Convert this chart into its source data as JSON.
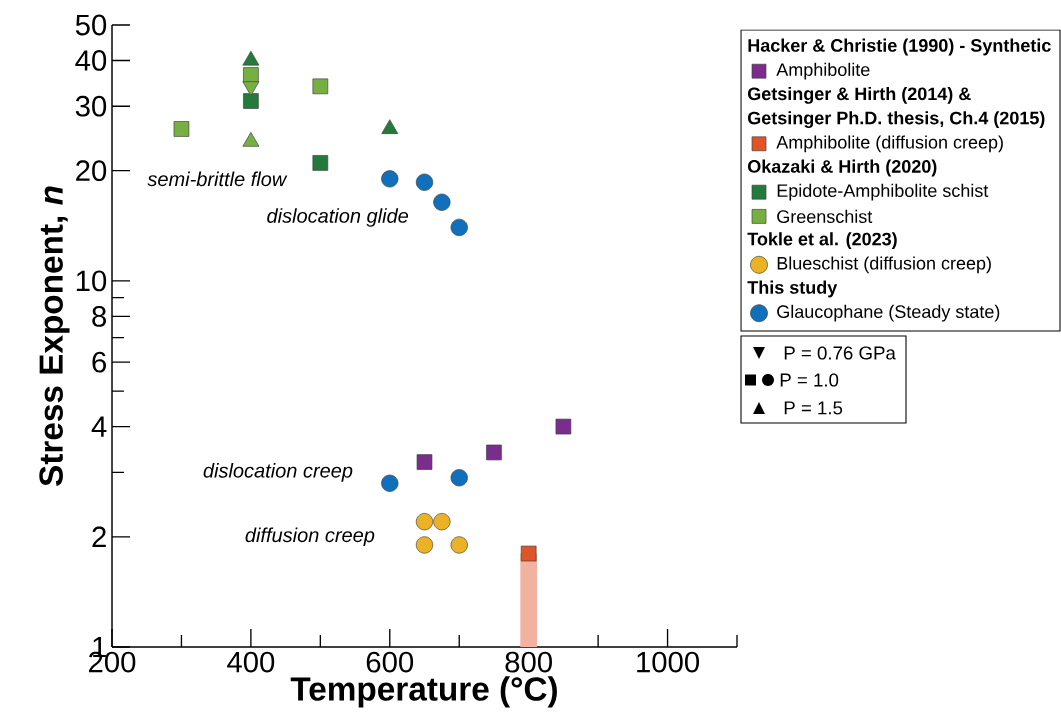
{
  "chart_data": {
    "type": "scatter",
    "xlabel": "Temperature (°C)",
    "ylabel": "Stress Exponent, *n*",
    "xlim": [
      200,
      1100
    ],
    "ylim": [
      1,
      50
    ],
    "log": "y",
    "grid": false,
    "legend": "right",
    "xticks": [
      200,
      {
        "value": 300,
        "label": null
      },
      400,
      {
        "value": 500,
        "label": null
      },
      600,
      {
        "value": 700,
        "label": null
      },
      800,
      {
        "value": 900,
        "label": null
      },
      1000,
      {
        "value": 1100,
        "label": null
      }
    ],
    "yticks": [
      1,
      2,
      {
        "value": 3,
        "label": null
      },
      4,
      {
        "value": 5,
        "label": null
      },
      6,
      {
        "value": 7,
        "label": null
      },
      8,
      {
        "value": 9,
        "label": null
      },
      10,
      20,
      30,
      40,
      50
    ],
    "series": [
      {
        "name": "Amphibolite",
        "color": "#7b2d8e",
        "marker": "square",
        "x": [
          650,
          750,
          850
        ],
        "values": [
          3.2,
          3.4,
          4.0
        ]
      },
      {
        "name": "Amphibolite (diffusion creep)",
        "color": "#e0542a",
        "marker": "square",
        "x": [
          800
        ],
        "values": [
          1.8
        ],
        "errors": [
          [
            1,
            1.8
          ]
        ]
      },
      {
        "name": "Epidote-Amphibolite schist",
        "color": "#237a3b",
        "marker": "square",
        "x": [
          400,
          500
        ],
        "values": [
          31,
          21
        ]
      },
      {
        "color": "#237a3b",
        "marker": "triangle",
        "x": [
          400,
          600
        ],
        "values": [
          40,
          26
        ]
      },
      {
        "name": "Greenschist",
        "color": "#76b043",
        "marker": "square",
        "x": [
          300,
          400,
          500
        ],
        "values": [
          26,
          36.5,
          34
        ]
      },
      {
        "color": "#76b043",
        "marker": "triangle_down",
        "x": [
          400
        ],
        "values": [
          34
        ]
      },
      {
        "color": "#76b043",
        "marker": "triangle",
        "x": [
          400
        ],
        "values": [
          24
        ]
      },
      {
        "name": "Blueschist (diffusion creep)",
        "color": "#ecb225",
        "marker": "circle",
        "x": [
          650,
          675,
          650,
          700
        ],
        "values": [
          2.2,
          2.2,
          1.9,
          1.9
        ]
      },
      {
        "name": "Glaucophane (Steady state)",
        "color": "#1070bb",
        "marker": "circle",
        "x": [
          600,
          650,
          675,
          700,
          600,
          700
        ],
        "values": [
          19,
          18.6,
          16.4,
          14,
          2.8,
          2.9
        ]
      }
    ],
    "annotations": [
      "Hacker & Christie (1990) - Synthetic",
      "Getsinger & Hirth (2014) &",
      "Getsinger Ph.D. thesis, Ch.4 (2015)",
      "Okazaki & Hirth (2020)",
      "Tokle et al. (2023)",
      "This study",
      "P = 0.76 GPa",
      "P = 1.0",
      "P = 1.5",
      "semi-brittle flow",
      "dislocation glide",
      "dislocation creep",
      "diffusion creep"
    ]
  }
}
